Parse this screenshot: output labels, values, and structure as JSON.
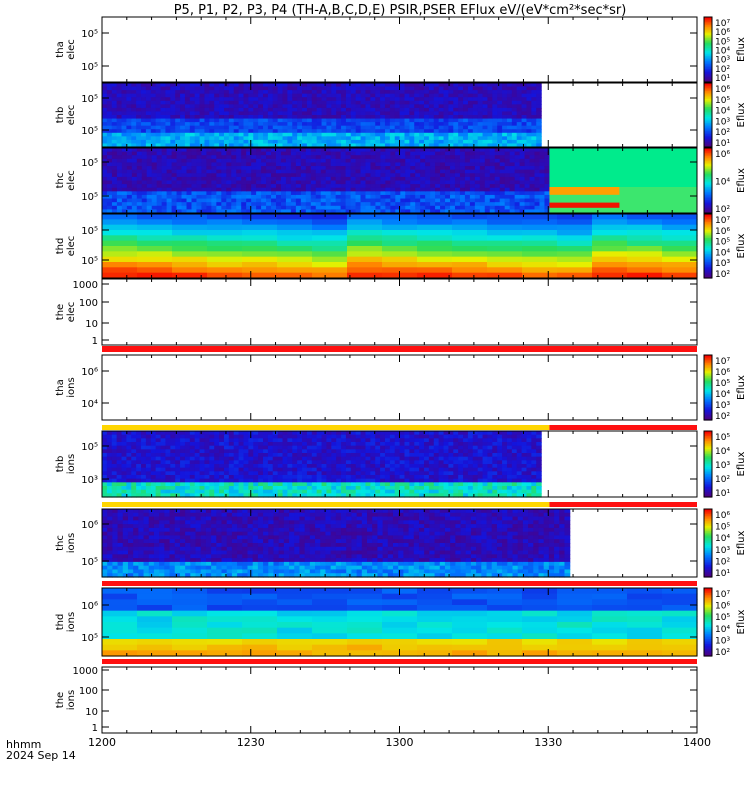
{
  "title": "P5, P1, P2, P3, P4 (TH-A,B,C,D,E) PSIR,PSER EFlux eV/(eV*cm²*sec*sr)",
  "xaxis": {
    "tick_labels": [
      "1200",
      "1230",
      "1300",
      "1330",
      "1400"
    ],
    "corner_label": "hhmm",
    "date_label": "2024 Sep 14"
  },
  "colorbar_label": "Eflux",
  "chart_data": [
    {
      "type": "heatmap",
      "panel": "tha elec",
      "ylabel": [
        "tha",
        "elec"
      ],
      "yscale": "log",
      "ytick_labels": [
        "10⁵",
        "10⁵"
      ],
      "data_extent": [
        0,
        0
      ],
      "colorbar": true,
      "colorbar_ticks": [
        "10⁷",
        "10⁶",
        "10⁵",
        "10⁴",
        "10³",
        "10²",
        "10¹"
      ]
    },
    {
      "type": "heatmap",
      "panel": "thb elec",
      "ylabel": [
        "thb",
        "elec"
      ],
      "yscale": "log",
      "ytick_labels": [
        "10⁵",
        "10⁵"
      ],
      "data_extent": [
        0,
        0.738
      ],
      "colorbar": true,
      "colorbar_ticks": [
        "10⁶",
        "10⁵",
        "10⁴",
        "10³",
        "10²",
        "10¹"
      ]
    },
    {
      "type": "heatmap",
      "panel": "thc elec",
      "ylabel": [
        "thc",
        "elec"
      ],
      "yscale": "log",
      "ytick_labels": [
        "10⁵",
        "10⁵"
      ],
      "data_extent": [
        0,
        0.752
      ],
      "colorbar": true,
      "colorbar_ticks": [
        "10⁶",
        "10⁴",
        "10²"
      ]
    },
    {
      "type": "heatmap",
      "panel": "thd elec",
      "ylabel": [
        "thd",
        "elec"
      ],
      "yscale": "log",
      "ytick_labels": [
        "10⁵",
        "10⁵"
      ],
      "data_extent": [
        0,
        1
      ],
      "colorbar": true,
      "colorbar_ticks": [
        "10⁷",
        "10⁶",
        "10⁵",
        "10⁴",
        "10³",
        "10²"
      ]
    },
    {
      "type": "heatmap",
      "panel": "the elec",
      "ylabel": [
        "the",
        "elec"
      ],
      "yscale": "log",
      "ytick_labels": [
        "1000",
        "100",
        "10",
        "1"
      ],
      "data_extent": [
        0,
        0
      ],
      "colorbar": false
    },
    {
      "type": "heatmap",
      "panel": "tha ions",
      "ylabel": [
        "tha",
        "ions"
      ],
      "yscale": "log",
      "ytick_labels": [
        "10⁶",
        "10⁴"
      ],
      "data_extent": [
        0,
        0
      ],
      "colorbar": true,
      "colorbar_ticks": [
        "10⁷",
        "10⁶",
        "10⁵",
        "10⁴",
        "10³",
        "10²"
      ]
    },
    {
      "type": "heatmap",
      "panel": "thb ions",
      "ylabel": [
        "thb",
        "ions"
      ],
      "yscale": "log",
      "ytick_labels": [
        "10⁵",
        "10³"
      ],
      "data_extent": [
        0,
        0.738
      ],
      "colorbar": true,
      "colorbar_ticks": [
        "10⁵",
        "10⁴",
        "10³",
        "10²",
        "10¹"
      ]
    },
    {
      "type": "heatmap",
      "panel": "thc ions",
      "ylabel": [
        "thc",
        "ions"
      ],
      "yscale": "log",
      "ytick_labels": [
        "10⁶",
        "10⁵"
      ],
      "data_extent": [
        0,
        0.786
      ],
      "colorbar": true,
      "colorbar_ticks": [
        "10⁶",
        "10⁵",
        "10⁴",
        "10³",
        "10²",
        "10¹"
      ]
    },
    {
      "type": "heatmap",
      "panel": "thd ions",
      "ylabel": [
        "thd",
        "ions"
      ],
      "yscale": "log",
      "ytick_labels": [
        "10⁶",
        "10⁵"
      ],
      "data_extent": [
        0,
        1
      ],
      "colorbar": true,
      "colorbar_ticks": [
        "10⁷",
        "10⁶",
        "10⁵",
        "10⁴",
        "10³",
        "10²"
      ]
    },
    {
      "type": "heatmap",
      "panel": "the ions",
      "ylabel": [
        "the",
        "ions"
      ],
      "yscale": "log",
      "ytick_labels": [
        "1000",
        "100",
        "10",
        "1"
      ],
      "data_extent": [
        0,
        0
      ],
      "colorbar": false
    }
  ],
  "status_bars": [
    {
      "after_panel": "the elec",
      "segments": [
        {
          "color": "#ff1010",
          "from": 0,
          "to": 1
        }
      ]
    },
    {
      "after_panel": "tha ions",
      "segments": [
        {
          "color": "#ffd600",
          "from": 0,
          "to": 0.752
        },
        {
          "color": "#ff1010",
          "from": 0.752,
          "to": 1
        }
      ]
    },
    {
      "after_panel": "thb ions",
      "segments": [
        {
          "color": "#ffd600",
          "from": 0,
          "to": 0.752
        },
        {
          "color": "#ff1010",
          "from": 0.752,
          "to": 1
        }
      ]
    },
    {
      "after_panel": "thc ions",
      "segments": [
        {
          "color": "#ff1010",
          "from": 0,
          "to": 1
        }
      ]
    },
    {
      "after_panel": "thd ions",
      "segments": [
        {
          "color": "#ff1010",
          "from": 0,
          "to": 1
        }
      ]
    }
  ]
}
